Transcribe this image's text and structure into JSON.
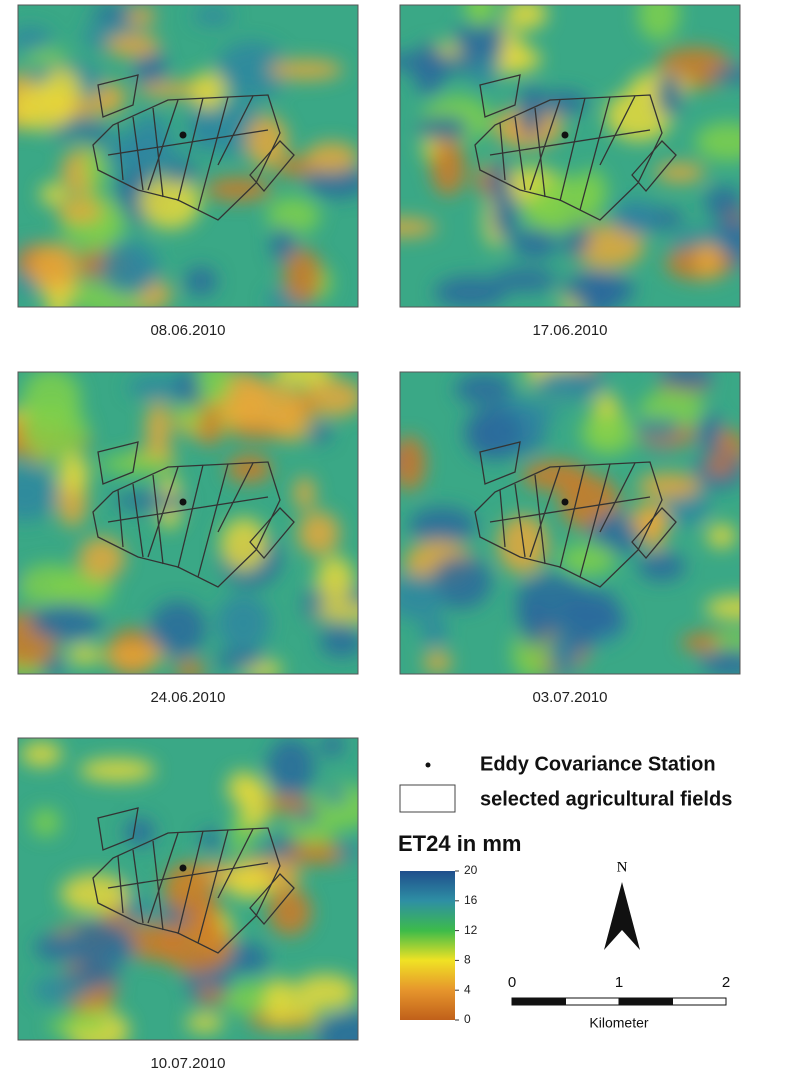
{
  "panels": [
    {
      "date": "08.06.2010"
    },
    {
      "date": "17.06.2010"
    },
    {
      "date": "24.06.2010"
    },
    {
      "date": "03.07.2010"
    },
    {
      "date": "10.07.2010"
    }
  ],
  "legend": {
    "station": "Eddy Covariance Station",
    "fields": "selected agricultural fields"
  },
  "colorbar": {
    "title": "ET24 in mm",
    "ticks": [
      0,
      4,
      8,
      12,
      16,
      20
    ]
  },
  "north": "N",
  "scale": {
    "ticks": [
      0,
      1,
      2
    ],
    "unit": "Kilometer"
  }
}
